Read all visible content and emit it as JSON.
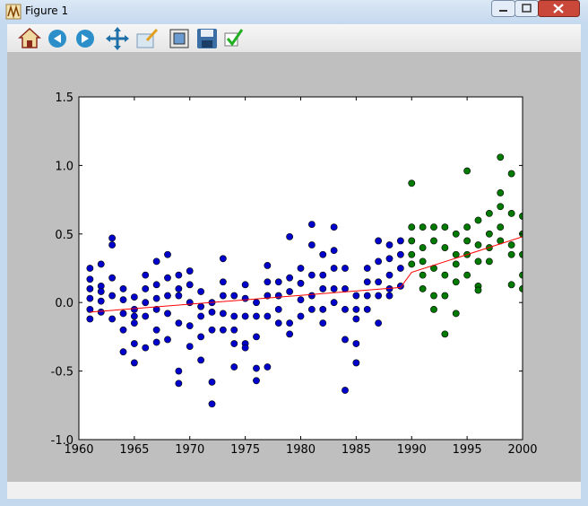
{
  "window": {
    "title": "Figure 1"
  },
  "chart_data": {
    "type": "scatter",
    "xlim": [
      1960,
      2000
    ],
    "xticks": [
      1960,
      1965,
      1970,
      1975,
      1980,
      1985,
      1990,
      1995,
      2000
    ],
    "ylim": [
      -1,
      1.5
    ],
    "yticks": [
      {
        "value": -1,
        "label": "-1.0"
      },
      -0.5,
      {
        "value": 0,
        "label": "0.0"
      },
      0.5,
      {
        "value": 1,
        "label": "1.0"
      },
      1.5
    ],
    "series": [
      {
        "color": "#0000cc",
        "x": [
          1961,
          1961,
          1961,
          1961,
          1961,
          1961,
          1962,
          1962,
          1962,
          1962,
          1962,
          1963,
          1963,
          1963,
          1963,
          1963,
          1964,
          1964,
          1964,
          1964,
          1964,
          1965,
          1965,
          1965,
          1965,
          1965,
          1965,
          1966,
          1966,
          1966,
          1966,
          1966,
          1967,
          1967,
          1967,
          1967,
          1967,
          1967,
          1968,
          1968,
          1968,
          1968,
          1968,
          1969,
          1969,
          1969,
          1969,
          1969,
          1969,
          1970,
          1970,
          1970,
          1970,
          1970,
          1971,
          1971,
          1971,
          1971,
          1971,
          1972,
          1972,
          1972,
          1972,
          1972,
          1973,
          1973,
          1973,
          1973,
          1973,
          1974,
          1974,
          1974,
          1974,
          1974,
          1975,
          1975,
          1975,
          1975,
          1975,
          1976,
          1976,
          1976,
          1976,
          1976,
          1977,
          1977,
          1977,
          1977,
          1977,
          1978,
          1978,
          1978,
          1978,
          1979,
          1979,
          1979,
          1979,
          1979,
          1980,
          1980,
          1980,
          1980,
          1981,
          1981,
          1981,
          1981,
          1981,
          1982,
          1982,
          1982,
          1982,
          1982,
          1983,
          1983,
          1983,
          1983,
          1983,
          1984,
          1984,
          1984,
          1984,
          1984,
          1985,
          1985,
          1985,
          1985,
          1985,
          1986,
          1986,
          1986,
          1986,
          1987,
          1987,
          1987,
          1987,
          1987,
          1988,
          1988,
          1988,
          1988,
          1988,
          1989,
          1989,
          1989,
          1989
        ],
        "values": [
          0.25,
          0.17,
          0.1,
          0.03,
          -0.05,
          -0.12,
          0.28,
          0.12,
          0.08,
          0.01,
          -0.07,
          0.47,
          0.42,
          0.18,
          0.05,
          -0.12,
          0.1,
          0.02,
          -0.08,
          -0.2,
          -0.36,
          0.04,
          -0.05,
          -0.1,
          -0.15,
          -0.3,
          -0.44,
          0.2,
          0.1,
          0.0,
          -0.1,
          -0.33,
          0.3,
          0.13,
          0.03,
          -0.05,
          -0.2,
          -0.29,
          0.35,
          0.18,
          0.05,
          -0.08,
          -0.27,
          0.2,
          0.1,
          0.05,
          -0.15,
          -0.5,
          -0.59,
          0.23,
          0.13,
          0.0,
          -0.17,
          -0.32,
          0.08,
          -0.03,
          -0.1,
          -0.25,
          -0.42,
          0.0,
          -0.07,
          -0.2,
          -0.58,
          -0.74,
          0.32,
          0.15,
          0.05,
          -0.08,
          -0.2,
          0.05,
          -0.1,
          -0.2,
          -0.3,
          -0.47,
          0.13,
          0.03,
          -0.1,
          -0.3,
          -0.33,
          0.0,
          -0.1,
          -0.25,
          -0.48,
          -0.57,
          0.27,
          0.15,
          0.05,
          -0.1,
          -0.47,
          0.15,
          0.05,
          -0.05,
          -0.15,
          0.48,
          0.18,
          0.08,
          -0.15,
          -0.23,
          0.25,
          0.14,
          0.02,
          -0.1,
          0.57,
          0.42,
          0.2,
          0.05,
          -0.05,
          0.35,
          0.2,
          0.1,
          -0.05,
          -0.15,
          0.55,
          0.38,
          0.25,
          0.1,
          0.0,
          0.25,
          0.1,
          -0.05,
          -0.27,
          -0.64,
          0.05,
          -0.05,
          -0.12,
          -0.3,
          -0.44,
          0.25,
          0.15,
          0.05,
          -0.05,
          0.45,
          0.3,
          0.15,
          0.05,
          -0.15,
          0.42,
          0.32,
          0.2,
          0.1,
          0.05,
          0.45,
          0.35,
          0.25,
          0.12
        ]
      },
      {
        "color": "#007a00",
        "x": [
          1990,
          1990,
          1990,
          1990,
          1990,
          1991,
          1991,
          1991,
          1991,
          1991,
          1992,
          1992,
          1992,
          1992,
          1992,
          1993,
          1993,
          1993,
          1993,
          1993,
          1994,
          1994,
          1994,
          1994,
          1994,
          1995,
          1995,
          1995,
          1995,
          1995,
          1996,
          1996,
          1996,
          1996,
          1996,
          1997,
          1997,
          1997,
          1997,
          1998,
          1998,
          1998,
          1998,
          1998,
          1999,
          1999,
          1999,
          1999,
          1999,
          2000,
          2000,
          2000,
          2000,
          2000
        ],
        "values": [
          0.87,
          0.55,
          0.45,
          0.35,
          0.28,
          0.55,
          0.4,
          0.3,
          0.2,
          0.1,
          0.55,
          0.45,
          0.25,
          0.05,
          -0.05,
          0.55,
          0.4,
          0.2,
          0.05,
          -0.23,
          0.5,
          0.35,
          0.28,
          0.15,
          -0.08,
          0.96,
          0.55,
          0.45,
          0.35,
          0.2,
          0.6,
          0.42,
          0.3,
          0.12,
          0.09,
          0.65,
          0.5,
          0.4,
          0.3,
          1.06,
          0.8,
          0.7,
          0.55,
          0.45,
          0.94,
          0.65,
          0.42,
          0.35,
          0.13,
          0.63,
          0.5,
          0.35,
          0.2,
          0.1
        ]
      },
      {
        "type": "line",
        "color": "#ff0000",
        "x": [
          1961,
          1989,
          1990,
          2000
        ],
        "values": [
          -0.07,
          0.11,
          0.22,
          0.48
        ]
      }
    ]
  }
}
